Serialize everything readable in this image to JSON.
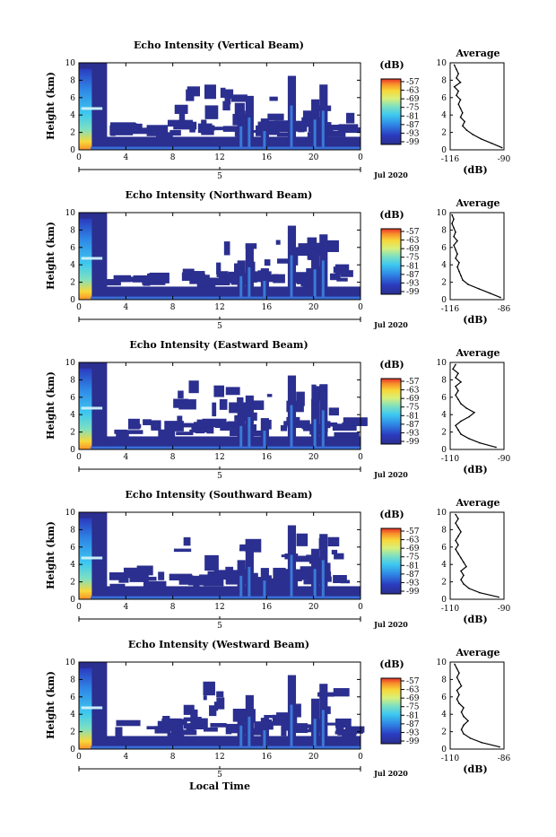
{
  "figure": {
    "bottom_xlabel": "Local Time",
    "date_label": "Jul 2020",
    "date_tick": "5"
  },
  "chart_data": [
    {
      "type": "heatmap",
      "title": "Echo Intensity (Vertical Beam)",
      "ylabel": "Height (km)",
      "xlabel": "Local Time",
      "x_ticks": [
        "0",
        "4",
        "8",
        "12",
        "16",
        "20",
        "0"
      ],
      "y_ticks": [
        "0",
        "2",
        "4",
        "6",
        "8",
        "10"
      ],
      "xlim": [
        0,
        24
      ],
      "ylim": [
        0,
        10
      ],
      "colorbar": {
        "unit": "(dB)",
        "ticks": [
          "-57",
          "-63",
          "-69",
          "-75",
          "-81",
          "-87",
          "-93",
          "-99"
        ]
      },
      "average": {
        "title": "Average",
        "xlabel": "(dB)",
        "xlim": [
          -116,
          -90
        ],
        "x_ticks": [
          "-116",
          "-90"
        ],
        "y_ticks": [
          "0",
          "2",
          "4",
          "6",
          "8",
          "10"
        ],
        "height_km": [
          0.25,
          0.75,
          1.25,
          1.75,
          2.25,
          2.75,
          3.25,
          3.75,
          4.25,
          4.75,
          5.25,
          5.75,
          6.25,
          6.75,
          7.25,
          7.75,
          8.25,
          8.75,
          9.25,
          9.75
        ],
        "db": [
          -91,
          -96,
          -101,
          -105,
          -108,
          -110,
          -109,
          -111,
          -110,
          -111,
          -112,
          -111,
          -113,
          -112,
          -114,
          -111,
          -113,
          -112,
          -113,
          -114
        ]
      },
      "date_label": "Jul 2020"
    },
    {
      "type": "heatmap",
      "title": "Echo Intensity (Northward Beam)",
      "ylabel": "Height (km)",
      "xlabel": "Local Time",
      "x_ticks": [
        "0",
        "4",
        "8",
        "12",
        "16",
        "20",
        "0"
      ],
      "y_ticks": [
        "0",
        "2",
        "4",
        "6",
        "8",
        "10"
      ],
      "xlim": [
        0,
        24
      ],
      "ylim": [
        0,
        10
      ],
      "colorbar": {
        "unit": "(dB)",
        "ticks": [
          "-57",
          "-63",
          "-69",
          "-75",
          "-81",
          "-87",
          "-93",
          "-99"
        ]
      },
      "average": {
        "title": "Average",
        "xlabel": "(dB)",
        "xlim": [
          -116,
          -86
        ],
        "x_ticks": [
          "-116",
          "-86"
        ],
        "y_ticks": [
          "0",
          "2",
          "4",
          "6",
          "8",
          "10"
        ],
        "height_km": [
          0.25,
          0.75,
          1.25,
          1.75,
          2.25,
          2.75,
          3.25,
          3.75,
          4.25,
          4.75,
          5.25,
          5.75,
          6.25,
          6.75,
          7.25,
          7.75,
          8.25,
          8.75,
          9.25,
          9.75
        ],
        "db": [
          -88,
          -94,
          -100,
          -106,
          -109,
          -110,
          -111,
          -112,
          -111,
          -113,
          -112,
          -113,
          -114,
          -112,
          -114,
          -113,
          -114,
          -115,
          -114,
          -115
        ]
      },
      "date_label": "Jul 2020"
    },
    {
      "type": "heatmap",
      "title": "Echo Intensity (Eastward Beam)",
      "ylabel": "Height (km)",
      "xlabel": "Local Time",
      "x_ticks": [
        "0",
        "4",
        "8",
        "12",
        "16",
        "20",
        "0"
      ],
      "y_ticks": [
        "0",
        "2",
        "4",
        "6",
        "8",
        "10"
      ],
      "xlim": [
        0,
        24
      ],
      "ylim": [
        0,
        10
      ],
      "colorbar": {
        "unit": "(dB)",
        "ticks": [
          "-57",
          "-63",
          "-69",
          "-75",
          "-81",
          "-87",
          "-93",
          "-99"
        ]
      },
      "average": {
        "title": "Average",
        "xlabel": "(dB)",
        "xlim": [
          -110,
          -90
        ],
        "x_ticks": [
          "-110",
          "-90"
        ],
        "y_ticks": [
          "0",
          "2",
          "4",
          "6",
          "8",
          "10"
        ],
        "height_km": [
          0.25,
          0.75,
          1.25,
          1.75,
          2.25,
          2.75,
          3.25,
          3.75,
          4.25,
          4.75,
          5.25,
          5.75,
          6.25,
          6.75,
          7.25,
          7.75,
          8.25,
          8.75,
          9.25,
          9.75
        ],
        "db": [
          -93,
          -99,
          -103,
          -106,
          -107,
          -108,
          -106,
          -103,
          -101,
          -104,
          -106,
          -107,
          -108,
          -107,
          -108,
          -106,
          -108,
          -107,
          -109,
          -108
        ]
      },
      "date_label": "Jul 2020"
    },
    {
      "type": "heatmap",
      "title": "Echo Intensity (Southward Beam)",
      "ylabel": "Height (km)",
      "xlabel": "Local Time",
      "x_ticks": [
        "0",
        "4",
        "8",
        "12",
        "16",
        "20",
        "0"
      ],
      "y_ticks": [
        "0",
        "2",
        "4",
        "6",
        "8",
        "10"
      ],
      "xlim": [
        0,
        24
      ],
      "ylim": [
        0,
        10
      ],
      "colorbar": {
        "unit": "(dB)",
        "ticks": [
          "-57",
          "-63",
          "-69",
          "-75",
          "-81",
          "-87",
          "-93",
          "-99"
        ]
      },
      "average": {
        "title": "Average",
        "xlabel": "(dB)",
        "xlim": [
          -110,
          -90
        ],
        "x_ticks": [
          "-110",
          "-90"
        ],
        "y_ticks": [
          "0",
          "2",
          "4",
          "6",
          "8",
          "10"
        ],
        "height_km": [
          0.25,
          0.75,
          1.25,
          1.75,
          2.25,
          2.75,
          3.25,
          3.75,
          4.25,
          4.75,
          5.25,
          5.75,
          6.25,
          6.75,
          7.25,
          7.75,
          8.25,
          8.75,
          9.25,
          9.75
        ],
        "db": [
          -92,
          -99,
          -103,
          -105,
          -106,
          -105,
          -106,
          -104,
          -105,
          -106,
          -107,
          -108,
          -107,
          -108,
          -107,
          -106,
          -107,
          -108,
          -107,
          -108
        ]
      },
      "date_label": "Jul 2020"
    },
    {
      "type": "heatmap",
      "title": "Echo Intensity (Westward Beam)",
      "ylabel": "Height (km)",
      "xlabel": "Local Time",
      "x_ticks": [
        "0",
        "4",
        "8",
        "12",
        "16",
        "20",
        "0"
      ],
      "y_ticks": [
        "0",
        "2",
        "4",
        "6",
        "8",
        "10"
      ],
      "xlim": [
        0,
        24
      ],
      "ylim": [
        0,
        10
      ],
      "colorbar": {
        "unit": "(dB)",
        "ticks": [
          "-57",
          "-63",
          "-69",
          "-75",
          "-81",
          "-87",
          "-93",
          "-99"
        ]
      },
      "average": {
        "title": "Average",
        "xlabel": "(dB)",
        "xlim": [
          -110,
          -86
        ],
        "x_ticks": [
          "-110",
          "-86"
        ],
        "y_ticks": [
          "0",
          "2",
          "4",
          "6",
          "8",
          "10"
        ],
        "height_km": [
          0.25,
          0.75,
          1.25,
          1.75,
          2.25,
          2.75,
          3.25,
          3.75,
          4.25,
          4.75,
          5.25,
          5.75,
          6.25,
          6.75,
          7.25,
          7.75,
          8.25,
          8.75,
          9.25,
          9.75
        ],
        "db": [
          -88,
          -96,
          -101,
          -104,
          -105,
          -104,
          -102,
          -104,
          -105,
          -104,
          -106,
          -107,
          -106,
          -107,
          -105,
          -106,
          -107,
          -106,
          -107,
          -108
        ]
      },
      "date_label": "Jul 2020"
    }
  ]
}
